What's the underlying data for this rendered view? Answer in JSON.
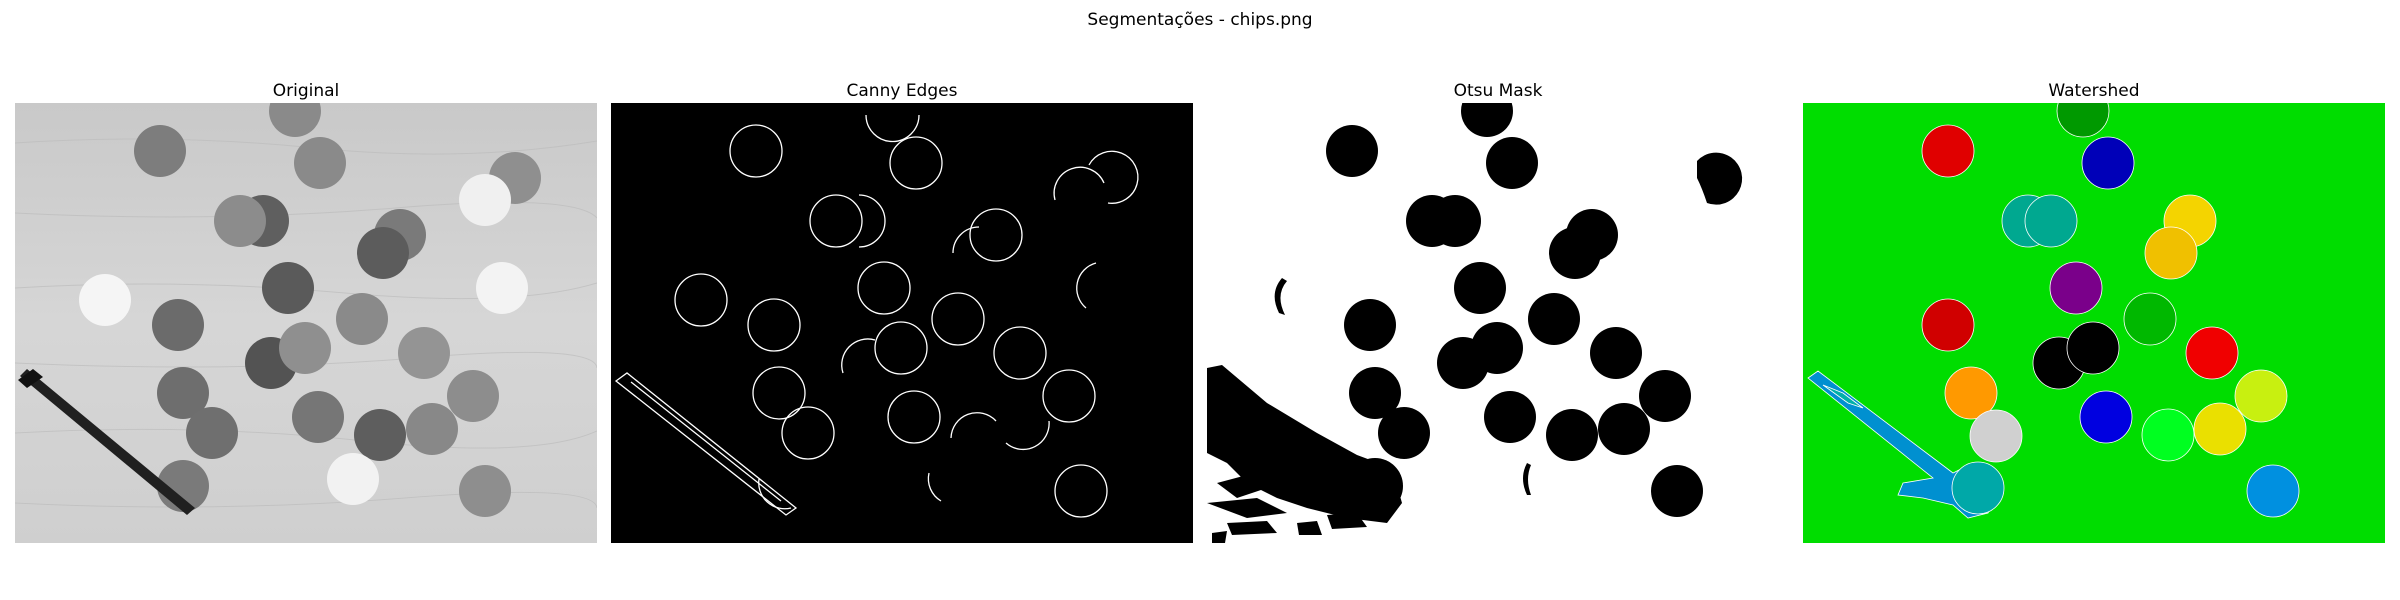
{
  "figure": {
    "title": "Segmentações - chips.png"
  },
  "panels": [
    {
      "title": "Original"
    },
    {
      "title": "Canny Edges"
    },
    {
      "title": "Otsu Mask"
    },
    {
      "title": "Watershed"
    }
  ],
  "colors": {
    "watershed_background": "#00dd00",
    "canny_background": "#000000",
    "otsu_background": "#ffffff"
  }
}
